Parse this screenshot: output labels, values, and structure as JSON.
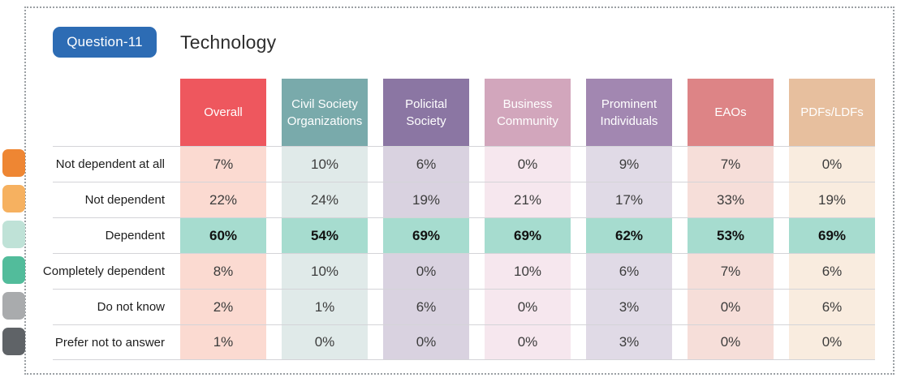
{
  "header": {
    "badge": "Question-11",
    "title": "Technology"
  },
  "table": {
    "highlight_color": "#a6dcCF",
    "columns": [
      {
        "label": "Overall",
        "header_color": "#ee575e",
        "tint": "#fbdad1"
      },
      {
        "label": "Civil Society Organizations",
        "header_color": "#79aaab",
        "tint": "#e0eae9"
      },
      {
        "label": "Policital Society",
        "header_color": "#8b76a3",
        "tint": "#d9d2e0"
      },
      {
        "label": "Business Community",
        "header_color": "#d2a6bc",
        "tint": "#f6e7ee"
      },
      {
        "label": "Prominent Individuals",
        "header_color": "#a287b1",
        "tint": "#e0dae6"
      },
      {
        "label": "EAOs",
        "header_color": "#dd8486",
        "tint": "#f6ded9"
      },
      {
        "label": "PDFs/LDFs",
        "header_color": "#e7bf9e",
        "tint": "#f9ecdf"
      }
    ],
    "rows": [
      {
        "label": "Not dependent at all",
        "marker_color": "#ee8633",
        "highlight": false,
        "values": [
          "7%",
          "10%",
          "6%",
          "0%",
          "9%",
          "7%",
          "0%"
        ]
      },
      {
        "label": "Not dependent",
        "marker_color": "#f6b160",
        "highlight": false,
        "values": [
          "22%",
          "24%",
          "19%",
          "21%",
          "17%",
          "33%",
          "19%"
        ]
      },
      {
        "label": "Dependent",
        "marker_color": "#bfe2d7",
        "highlight": true,
        "values": [
          "60%",
          "54%",
          "69%",
          "69%",
          "62%",
          "53%",
          "69%"
        ]
      },
      {
        "label": "Completely dependent",
        "marker_color": "#52bc9b",
        "highlight": false,
        "values": [
          "8%",
          "10%",
          "0%",
          "10%",
          "6%",
          "7%",
          "6%"
        ]
      },
      {
        "label": "Do not know",
        "marker_color": "#a9abad",
        "highlight": false,
        "values": [
          "2%",
          "1%",
          "6%",
          "0%",
          "3%",
          "0%",
          "6%"
        ]
      },
      {
        "label": "Prefer not to answer",
        "marker_color": "#5f6367",
        "highlight": false,
        "values": [
          "1%",
          "0%",
          "0%",
          "0%",
          "3%",
          "0%",
          "0%"
        ]
      }
    ]
  },
  "chart_data": {
    "type": "table",
    "title": "Technology",
    "subtitle": "Question-11",
    "columns": [
      "Overall",
      "Civil Society Organizations",
      "Policital Society",
      "Business Community",
      "Prominent Individuals",
      "EAOs",
      "PDFs/LDFs"
    ],
    "rows": [
      "Not dependent at all",
      "Not dependent",
      "Dependent",
      "Completely dependent",
      "Do not know",
      "Prefer not to answer"
    ],
    "values_percent": [
      [
        7,
        10,
        6,
        0,
        9,
        7,
        0
      ],
      [
        22,
        24,
        19,
        21,
        17,
        33,
        19
      ],
      [
        60,
        54,
        69,
        69,
        62,
        53,
        69
      ],
      [
        8,
        10,
        0,
        10,
        6,
        7,
        6
      ],
      [
        2,
        1,
        6,
        0,
        3,
        0,
        6
      ],
      [
        1,
        0,
        0,
        0,
        3,
        0,
        0
      ]
    ],
    "highlighted_row": "Dependent",
    "badge_color": "#2d6cb4",
    "highlight_color": "#a6dccf"
  }
}
